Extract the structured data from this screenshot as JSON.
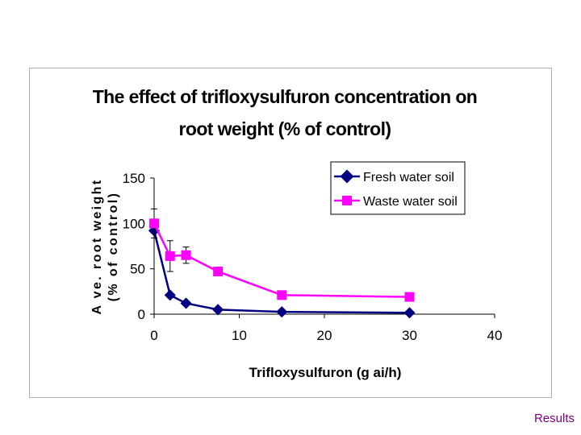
{
  "footer": {
    "results_link": "Results",
    "link_color": "#800080"
  },
  "chart_data": {
    "type": "line",
    "title_lines": [
      "The effect of trifloxysulfuron concentration on",
      "root weight (% of control)"
    ],
    "xlabel": "Trifloxysulfuron (g ai/h)",
    "ylabel_lines": [
      "A ve. root weight",
      "(% of control)"
    ],
    "xlim": [
      0,
      40
    ],
    "ylim": [
      0,
      150
    ],
    "xticks": [
      0,
      10,
      20,
      30,
      40
    ],
    "yticks": [
      0,
      50,
      100,
      150
    ],
    "grid": false,
    "legend_position": "top-right",
    "series": [
      {
        "name": "Fresh water soil",
        "color": "#000080",
        "marker": "diamond",
        "x": [
          0,
          1.875,
          3.75,
          7.5,
          15,
          30
        ],
        "y": [
          92,
          21,
          12,
          5,
          2.5,
          1.5
        ]
      },
      {
        "name": "Waste water soil",
        "color": "#ff00ff",
        "marker": "square",
        "x": [
          0,
          1.875,
          3.75,
          7.5,
          15,
          30
        ],
        "y": [
          100,
          64,
          65,
          47,
          21,
          19
        ],
        "error": [
          16,
          17,
          9,
          0,
          4,
          0
        ]
      }
    ]
  }
}
